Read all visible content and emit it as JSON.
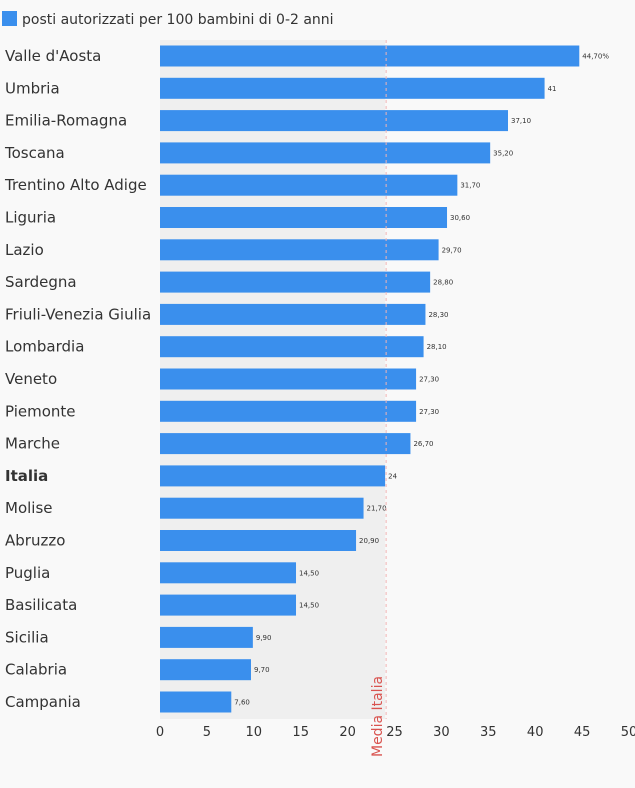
{
  "chart_data": {
    "type": "bar",
    "orientation": "horizontal",
    "legend": {
      "position": "top-left",
      "entries": [
        "posti autorizzati per 100 bambini di 0-2 anni"
      ]
    },
    "categories": [
      "Valle d'Aosta",
      "Umbria",
      "Emilia-Romagna",
      "Toscana",
      "Trentino Alto Adige",
      "Liguria",
      "Lazio",
      "Sardegna",
      "Friuli-Venezia Giulia",
      "Lombardia",
      "Veneto",
      "Piemonte",
      "Marche",
      "Italia",
      "Molise",
      "Abruzzo",
      "Puglia",
      "Basilicata",
      "Sicilia",
      "Calabria",
      "Campania"
    ],
    "series": [
      {
        "name": "posti autorizzati per 100 bambini di 0-2 anni",
        "color": "#3a8fed",
        "values": [
          44.7,
          41,
          37.1,
          35.2,
          31.7,
          30.6,
          29.7,
          28.8,
          28.3,
          28.1,
          27.3,
          27.3,
          26.7,
          24,
          21.7,
          20.9,
          14.5,
          14.5,
          9.9,
          9.7,
          7.6
        ],
        "labels": [
          "44,70%",
          "41",
          "37,10",
          "35,20",
          "31,70",
          "30,60",
          "29,70",
          "28,80",
          "28,30",
          "28,10",
          "27,30",
          "27,30",
          "26,70",
          "24",
          "21,70",
          "20,90",
          "14,50",
          "14,50",
          "9,90",
          "9,70",
          "7,60"
        ]
      }
    ],
    "highlight_category": "Italia",
    "xlim": [
      0,
      50
    ],
    "x_ticks": [
      "0",
      "5",
      "10",
      "15",
      "20",
      "25",
      "30",
      "35",
      "40",
      "45",
      "50"
    ],
    "reference_line": {
      "value": 24,
      "label": "Media Italia",
      "color": "#d9534f"
    },
    "reference_band": {
      "from": 0,
      "to": 24,
      "color": "#efefef"
    },
    "grid": false
  }
}
